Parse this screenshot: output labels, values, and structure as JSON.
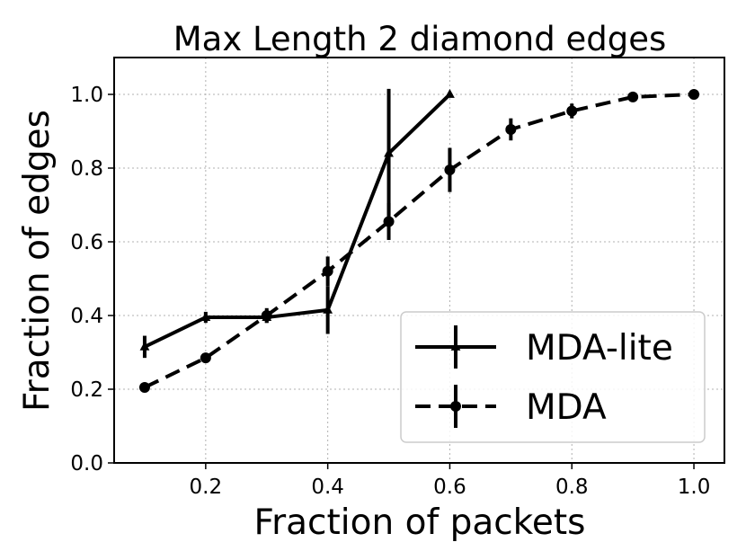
{
  "chart_data": {
    "type": "line",
    "title": "Max Length 2 diamond edges",
    "xlabel": "Fraction of packets",
    "ylabel": "Fraction of edges",
    "xlim": [
      0.05,
      1.05
    ],
    "ylim": [
      0.0,
      1.1
    ],
    "xticks": [
      0.2,
      0.4,
      0.6,
      0.8,
      1.0
    ],
    "xtick_labels": [
      "0.2",
      "0.4",
      "0.6",
      "0.8",
      "1.0"
    ],
    "yticks": [
      0.0,
      0.2,
      0.4,
      0.6,
      0.8,
      1.0
    ],
    "ytick_labels": [
      "0.0",
      "0.2",
      "0.4",
      "0.6",
      "0.8",
      "1.0"
    ],
    "grid": true,
    "legend_position": "lower-right",
    "series": [
      {
        "name": "MDA-lite",
        "style": "solid",
        "marker": "triangle",
        "color": "#000000",
        "x": [
          0.1,
          0.2,
          0.3,
          0.4,
          0.5,
          0.6
        ],
        "y": [
          0.315,
          0.395,
          0.395,
          0.415,
          0.84,
          1.0
        ],
        "yerr": [
          0.03,
          0.015,
          0.015,
          0.065,
          0.175,
          0.0
        ]
      },
      {
        "name": "MDA",
        "style": "dashed",
        "marker": "circle",
        "color": "#000000",
        "x": [
          0.1,
          0.2,
          0.3,
          0.4,
          0.5,
          0.6,
          0.7,
          0.8,
          0.9,
          1.0
        ],
        "y": [
          0.205,
          0.285,
          0.4,
          0.52,
          0.655,
          0.795,
          0.905,
          0.955,
          0.993,
          1.0
        ],
        "yerr": [
          0.0,
          0.01,
          0.02,
          0.04,
          0.05,
          0.06,
          0.03,
          0.02,
          0.005,
          0.0
        ]
      }
    ]
  }
}
